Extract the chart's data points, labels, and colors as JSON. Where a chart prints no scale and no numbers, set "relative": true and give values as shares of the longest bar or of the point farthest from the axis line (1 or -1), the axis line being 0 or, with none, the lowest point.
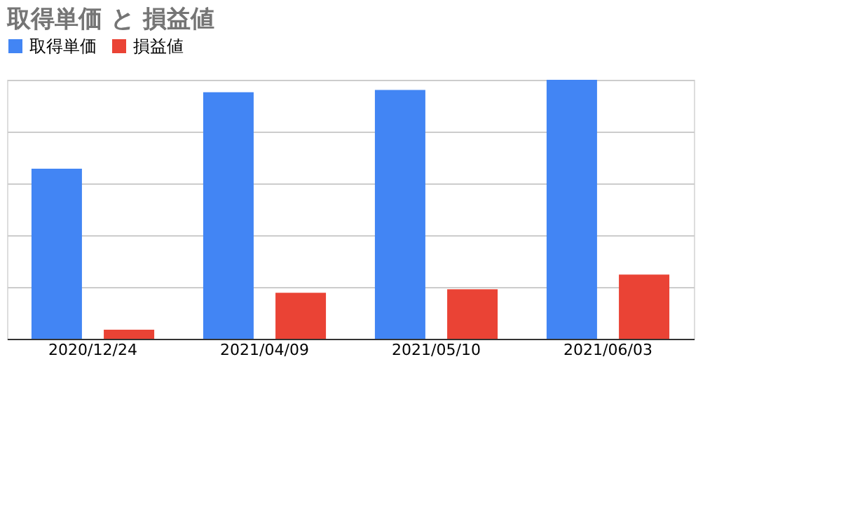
{
  "chart_data": {
    "type": "bar",
    "title": "取得単価 と 損益値",
    "relative": true,
    "categories": [
      "2020/12/24",
      "2021/04/09",
      "2021/05/10",
      "2021/06/03"
    ],
    "series": [
      {
        "name": "取得単価",
        "color": "#4285f4",
        "values": [
          0.657,
          0.952,
          0.961,
          1.0
        ]
      },
      {
        "name": "損益値",
        "color": "#ea4335",
        "values": [
          0.035,
          0.178,
          0.191,
          0.248
        ]
      }
    ],
    "grid": "y",
    "legend": "top"
  }
}
